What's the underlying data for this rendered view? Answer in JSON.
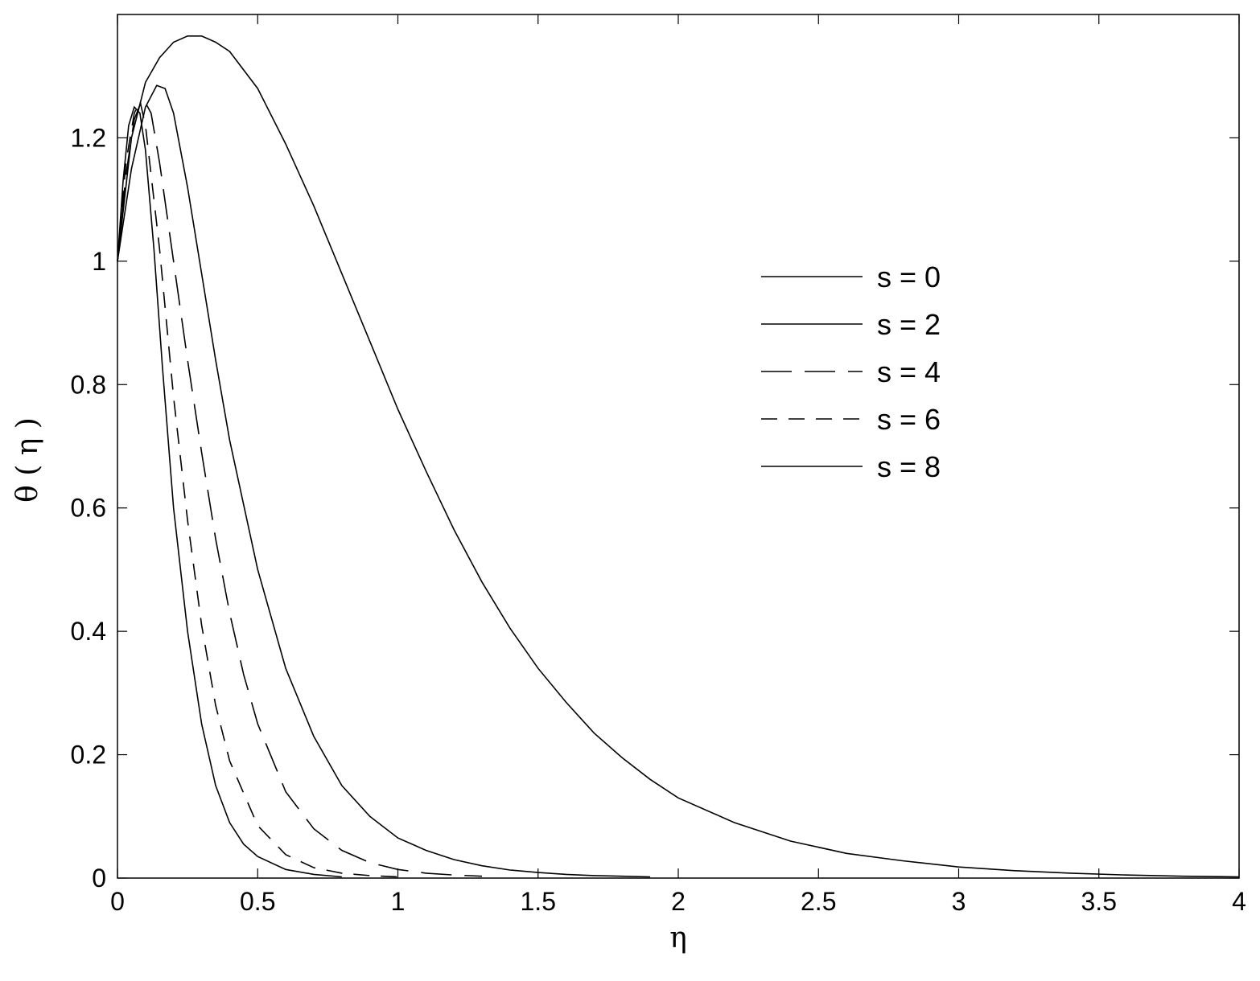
{
  "chart_data": {
    "type": "line",
    "title": "",
    "xlabel": "η",
    "ylabel": "θ ( η )",
    "xlim": [
      0,
      4
    ],
    "ylim": [
      0,
      1.4
    ],
    "x_ticks": [
      "0",
      "0.5",
      "1",
      "1.5",
      "2",
      "2.5",
      "3",
      "3.5",
      "4"
    ],
    "y_ticks": [
      "0",
      "0.2",
      "0.4",
      "0.6",
      "0.8",
      "1",
      "1.2"
    ],
    "grid": false,
    "legend_position": "upper-right",
    "series": [
      {
        "name": "s = 0",
        "dash": "solid",
        "x": [
          0,
          0.05,
          0.1,
          0.15,
          0.2,
          0.25,
          0.3,
          0.35,
          0.4,
          0.5,
          0.6,
          0.7,
          0.8,
          0.9,
          1.0,
          1.1,
          1.2,
          1.3,
          1.4,
          1.5,
          1.6,
          1.7,
          1.8,
          1.9,
          2.0,
          2.2,
          2.4,
          2.6,
          2.8,
          3.0,
          3.2,
          3.4,
          3.6,
          3.8,
          4.0
        ],
        "y": [
          1.0,
          1.2,
          1.29,
          1.33,
          1.355,
          1.365,
          1.365,
          1.355,
          1.34,
          1.28,
          1.19,
          1.09,
          0.98,
          0.87,
          0.76,
          0.66,
          0.565,
          0.48,
          0.405,
          0.34,
          0.285,
          0.235,
          0.195,
          0.16,
          0.13,
          0.09,
          0.06,
          0.04,
          0.028,
          0.018,
          0.012,
          0.008,
          0.005,
          0.003,
          0.002
        ]
      },
      {
        "name": "s = 2",
        "dash": "solid",
        "x": [
          0,
          0.05,
          0.1,
          0.14,
          0.17,
          0.2,
          0.25,
          0.3,
          0.35,
          0.4,
          0.5,
          0.6,
          0.7,
          0.8,
          0.9,
          1.0,
          1.1,
          1.2,
          1.3,
          1.4,
          1.5,
          1.6,
          1.7,
          1.8,
          1.9
        ],
        "y": [
          1.0,
          1.15,
          1.25,
          1.285,
          1.28,
          1.24,
          1.12,
          0.98,
          0.84,
          0.71,
          0.5,
          0.34,
          0.23,
          0.15,
          0.1,
          0.065,
          0.045,
          0.03,
          0.02,
          0.013,
          0.009,
          0.006,
          0.004,
          0.003,
          0.002
        ]
      },
      {
        "name": "s = 4",
        "dash": "long-dash",
        "x": [
          0,
          0.03,
          0.06,
          0.09,
          0.12,
          0.15,
          0.2,
          0.25,
          0.3,
          0.35,
          0.4,
          0.45,
          0.5,
          0.6,
          0.7,
          0.8,
          0.9,
          1.0,
          1.1,
          1.2,
          1.3
        ],
        "y": [
          1.0,
          1.14,
          1.23,
          1.265,
          1.24,
          1.16,
          1.0,
          0.84,
          0.69,
          0.55,
          0.43,
          0.33,
          0.25,
          0.14,
          0.08,
          0.045,
          0.025,
          0.014,
          0.008,
          0.005,
          0.003
        ]
      },
      {
        "name": "s = 6",
        "dash": "dash",
        "x": [
          0,
          0.03,
          0.06,
          0.08,
          0.1,
          0.15,
          0.2,
          0.25,
          0.3,
          0.35,
          0.4,
          0.5,
          0.6,
          0.7,
          0.8,
          0.9,
          1.0
        ],
        "y": [
          1.0,
          1.16,
          1.24,
          1.26,
          1.22,
          1.02,
          0.78,
          0.58,
          0.41,
          0.28,
          0.19,
          0.085,
          0.038,
          0.017,
          0.008,
          0.004,
          0.002
        ]
      },
      {
        "name": "s = 8",
        "dash": "solid",
        "x": [
          0,
          0.02,
          0.04,
          0.06,
          0.08,
          0.1,
          0.13,
          0.16,
          0.2,
          0.25,
          0.3,
          0.35,
          0.4,
          0.45,
          0.5,
          0.6,
          0.7,
          0.8
        ],
        "y": [
          1.0,
          1.13,
          1.22,
          1.25,
          1.24,
          1.18,
          1.02,
          0.83,
          0.6,
          0.4,
          0.25,
          0.15,
          0.09,
          0.055,
          0.035,
          0.014,
          0.006,
          0.002
        ]
      }
    ]
  }
}
